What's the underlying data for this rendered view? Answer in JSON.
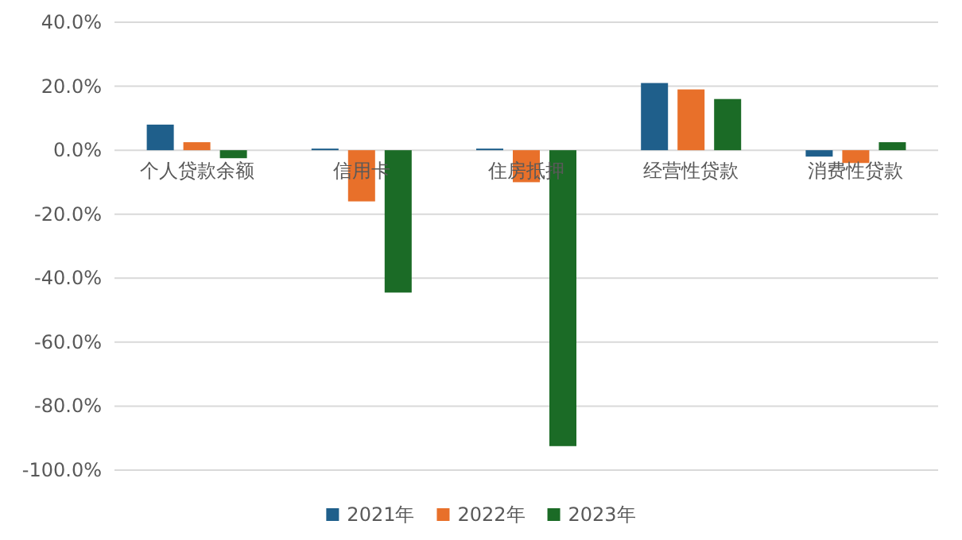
{
  "chart_data": {
    "type": "bar",
    "categories": [
      "个人贷款余额",
      "信用卡",
      "住房抵押",
      "经营性贷款",
      "消费性贷款"
    ],
    "series": [
      {
        "name": "2021年",
        "color": "#1f5f8b",
        "values": [
          8,
          0.5,
          0.5,
          21,
          -2
        ]
      },
      {
        "name": "2022年",
        "color": "#e8702a",
        "values": [
          2.5,
          -16,
          -10,
          19,
          -4
        ]
      },
      {
        "name": "2023年",
        "color": "#1b6b26",
        "values": [
          -2.5,
          -44.5,
          -92.5,
          16,
          2.5
        ]
      }
    ],
    "ylim": [
      -100,
      40
    ],
    "yticks": [
      {
        "value": 40,
        "label": "40.0%"
      },
      {
        "value": 20,
        "label": "20.0%"
      },
      {
        "value": 0,
        "label": "0.0%"
      },
      {
        "value": -20,
        "label": "-20.0%"
      },
      {
        "value": -40,
        "label": "-40.0%"
      },
      {
        "value": -60,
        "label": "-60.0%"
      },
      {
        "value": -80,
        "label": "-80.0%"
      },
      {
        "value": -100,
        "label": "-100.0%"
      }
    ],
    "grid": "y",
    "legend": "bottom"
  }
}
